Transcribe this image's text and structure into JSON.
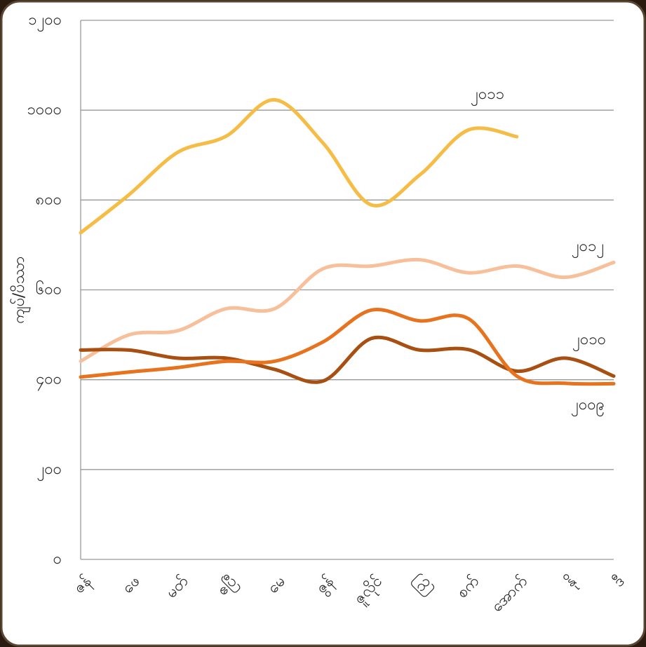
{
  "chart_data": {
    "type": "line",
    "ylabel": "ကျပ်/ပိဿာ",
    "categories": [
      "ဇန်",
      "ဖေ",
      "မတ်",
      "ဧပြီ",
      "မေ",
      "ဇွန်",
      "ဇူလိုင်",
      "ဩ",
      "စက်",
      "အောက်",
      "နို",
      "ဒီ"
    ],
    "series": [
      {
        "name": "၂၀၁၁",
        "color": "#f5bd45",
        "values": [
          727,
          812,
          906,
          942,
          1023,
          927,
          789,
          856,
          956,
          941,
          null,
          null
        ]
      },
      {
        "name": "၂၀၁၂",
        "color": "#f8c09a",
        "values": [
          441,
          500,
          509,
          558,
          558,
          647,
          653,
          667,
          638,
          653,
          628,
          661
        ]
      },
      {
        "name": "၂၀၁၀",
        "color": "#a84f12",
        "values": [
          466,
          466,
          448,
          448,
          423,
          397,
          492,
          466,
          467,
          419,
          448,
          408
        ]
      },
      {
        "name": "၂၀၀၉",
        "color": "#e8731e",
        "values": [
          406,
          417,
          427,
          441,
          441,
          484,
          555,
          531,
          536,
          408,
          392,
          391
        ]
      }
    ],
    "ylim": [
      0,
      1200
    ],
    "yticks": [
      {
        "value": 0,
        "label": "၀"
      },
      {
        "value": 200,
        "label": "၂၀၀"
      },
      {
        "value": 400,
        "label": "၄၀၀"
      },
      {
        "value": 600,
        "label": "၆၀၀"
      },
      {
        "value": 800,
        "label": "၈၀၀"
      },
      {
        "value": 1000,
        "label": "၁၀၀၀"
      },
      {
        "value": 1200,
        "label": "၁၂၀၀"
      }
    ],
    "grid": true
  }
}
